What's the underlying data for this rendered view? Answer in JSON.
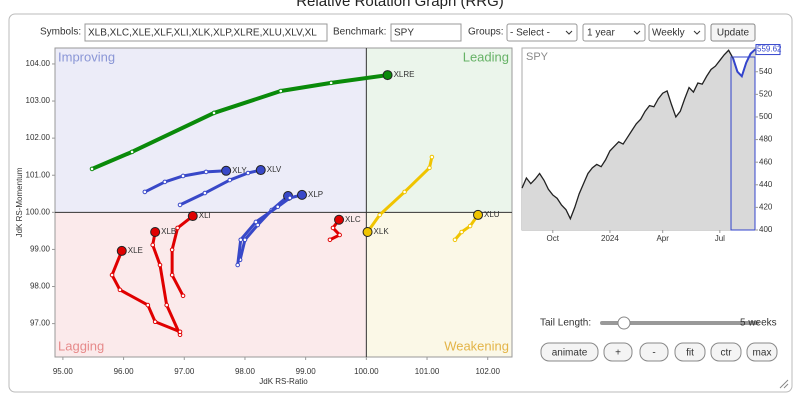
{
  "title": "Relative Rotation Graph (RRG)",
  "controls": {
    "symbols_label": "Symbols:",
    "symbols": "XLB,XLC,XLE,XLF,XLI,XLK,XLP,XLRE,XLU,XLV,XL",
    "benchmark_label": "Benchmark:",
    "benchmark": "SPY",
    "groups_label": "Groups:",
    "groups": "- Select -",
    "period": "1 year",
    "frequency": "Weekly",
    "update": "Update"
  },
  "chart_data": [
    {
      "type": "rrg",
      "x_label": "JdK RS-Ratio",
      "y_label": "JdK RS-Momentum",
      "quadrants": {
        "improving": "Improving",
        "leading": "Leading",
        "lagging": "Lagging",
        "weakening": "Weakening"
      },
      "center": {
        "x": 100,
        "y": 100
      },
      "xlim": [
        94.87,
        102.4
      ],
      "ylim": [
        96.1,
        104.43
      ],
      "xticks": [
        {
          "value": 95,
          "label": "95.00"
        },
        {
          "value": 96,
          "label": "96.00"
        },
        {
          "value": 97,
          "label": "97.00"
        },
        {
          "value": 98,
          "label": "98.00"
        },
        {
          "value": 99,
          "label": "99.00"
        },
        {
          "value": 100,
          "label": "100.00"
        },
        {
          "value": 101,
          "label": "101.00"
        },
        {
          "value": 102,
          "label": "102.00"
        }
      ],
      "yticks": [
        {
          "value": 97,
          "label": "97.00"
        },
        {
          "value": 98,
          "label": "98.00"
        },
        {
          "value": 99,
          "label": "99.00"
        },
        {
          "value": 100,
          "label": "100.00"
        },
        {
          "value": 101,
          "label": "101.00"
        },
        {
          "value": 102,
          "label": "102.00"
        },
        {
          "value": 103,
          "label": "103.00"
        },
        {
          "value": 104,
          "label": "104.00"
        }
      ],
      "series": [
        {
          "name": "XLRE",
          "color": "#0a8a0a",
          "x": [
            95.48,
            96.14,
            97.49,
            98.59,
            99.42,
            100.35
          ],
          "y": [
            101.17,
            101.63,
            102.68,
            103.27,
            103.49,
            103.7
          ]
        },
        {
          "name": "XLY",
          "color": "#3848c8",
          "x": [
            96.35,
            96.68,
            96.98,
            97.36,
            97.69
          ],
          "y": [
            100.55,
            100.82,
            100.98,
            101.09,
            101.12
          ]
        },
        {
          "name": "XLV",
          "color": "#3848c8",
          "x": [
            96.93,
            97.34,
            97.75,
            98.05,
            98.26
          ],
          "y": [
            100.2,
            100.52,
            100.87,
            101.06,
            101.14
          ]
        },
        {
          "name": null,
          "color": "#3848c8",
          "x": [
            97.92,
            98.0,
            98.21,
            98.44,
            98.71
          ],
          "y": [
            98.72,
            99.26,
            99.66,
            100.06,
            100.44
          ]
        },
        {
          "name": "XLP",
          "color": "#3848c8",
          "x": [
            97.88,
            97.93,
            98.18,
            98.54,
            98.74,
            98.94
          ],
          "y": [
            98.58,
            99.26,
            99.74,
            100.15,
            100.39,
            100.47
          ]
        },
        {
          "name": "XLI",
          "color": "#e00000",
          "x": [
            96.98,
            96.8,
            96.8,
            96.89,
            97.14
          ],
          "y": [
            97.75,
            98.31,
            98.99,
            99.58,
            99.9
          ]
        },
        {
          "name": "XLB",
          "color": "#e00000",
          "x": [
            96.93,
            96.71,
            96.6,
            96.48,
            96.52
          ],
          "y": [
            96.7,
            97.5,
            98.58,
            99.12,
            99.47
          ]
        },
        {
          "name": "XLE",
          "color": "#e00000",
          "x": [
            96.93,
            96.52,
            96.4,
            95.94,
            95.81,
            95.97
          ],
          "y": [
            96.78,
            97.05,
            97.5,
            97.91,
            98.31,
            98.96
          ]
        },
        {
          "name": "XLC",
          "color": "#e00000",
          "x": [
            99.4,
            99.56,
            99.45,
            99.55
          ],
          "y": [
            99.26,
            99.39,
            99.58,
            99.8
          ]
        },
        {
          "name": "XLK",
          "color": "#f0c400",
          "x": [
            101.08,
            101.04,
            100.63,
            100.22,
            100.02
          ],
          "y": [
            101.49,
            101.2,
            100.55,
            99.93,
            99.47
          ]
        },
        {
          "name": "XLU",
          "color": "#f0c400",
          "x": [
            101.46,
            101.57,
            101.71,
            101.84
          ],
          "y": [
            99.26,
            99.47,
            99.63,
            99.93
          ]
        }
      ]
    },
    {
      "type": "line",
      "title": "SPY",
      "color": "#222222",
      "tail_color": "#3344cc",
      "categories": [
        null,
        null,
        null,
        null,
        null,
        null,
        null,
        "Oct",
        null,
        null,
        null,
        null,
        null,
        null,
        null,
        null,
        null,
        null,
        null,
        null,
        "2024",
        null,
        null,
        null,
        null,
        null,
        null,
        null,
        null,
        null,
        null,
        null,
        "Apr",
        null,
        null,
        null,
        null,
        null,
        null,
        null,
        null,
        null,
        null,
        null,
        null,
        "Jul",
        null,
        null,
        null,
        null,
        null,
        null,
        null,
        null
      ],
      "values": [
        437,
        446,
        441,
        445,
        450,
        444,
        436,
        431,
        428,
        422,
        418,
        410,
        420,
        432,
        441,
        450,
        455,
        458,
        456,
        462,
        470,
        474,
        478,
        476,
        482,
        488,
        494,
        498,
        505,
        510,
        509,
        516,
        521,
        523,
        511,
        500,
        505,
        516,
        526,
        522,
        530,
        529,
        536,
        542,
        545,
        550,
        555,
        559,
        552,
        540,
        536,
        548,
        556,
        559.62
      ],
      "ylim": [
        400,
        561
      ],
      "yticks": [
        400,
        420,
        440,
        460,
        480,
        500,
        520,
        540,
        560
      ]
    }
  ],
  "tail": {
    "label": "Tail Length:",
    "value": "5 weeks"
  },
  "buttons": [
    "animate",
    "+",
    "-",
    "fit",
    "ctr",
    "max"
  ]
}
